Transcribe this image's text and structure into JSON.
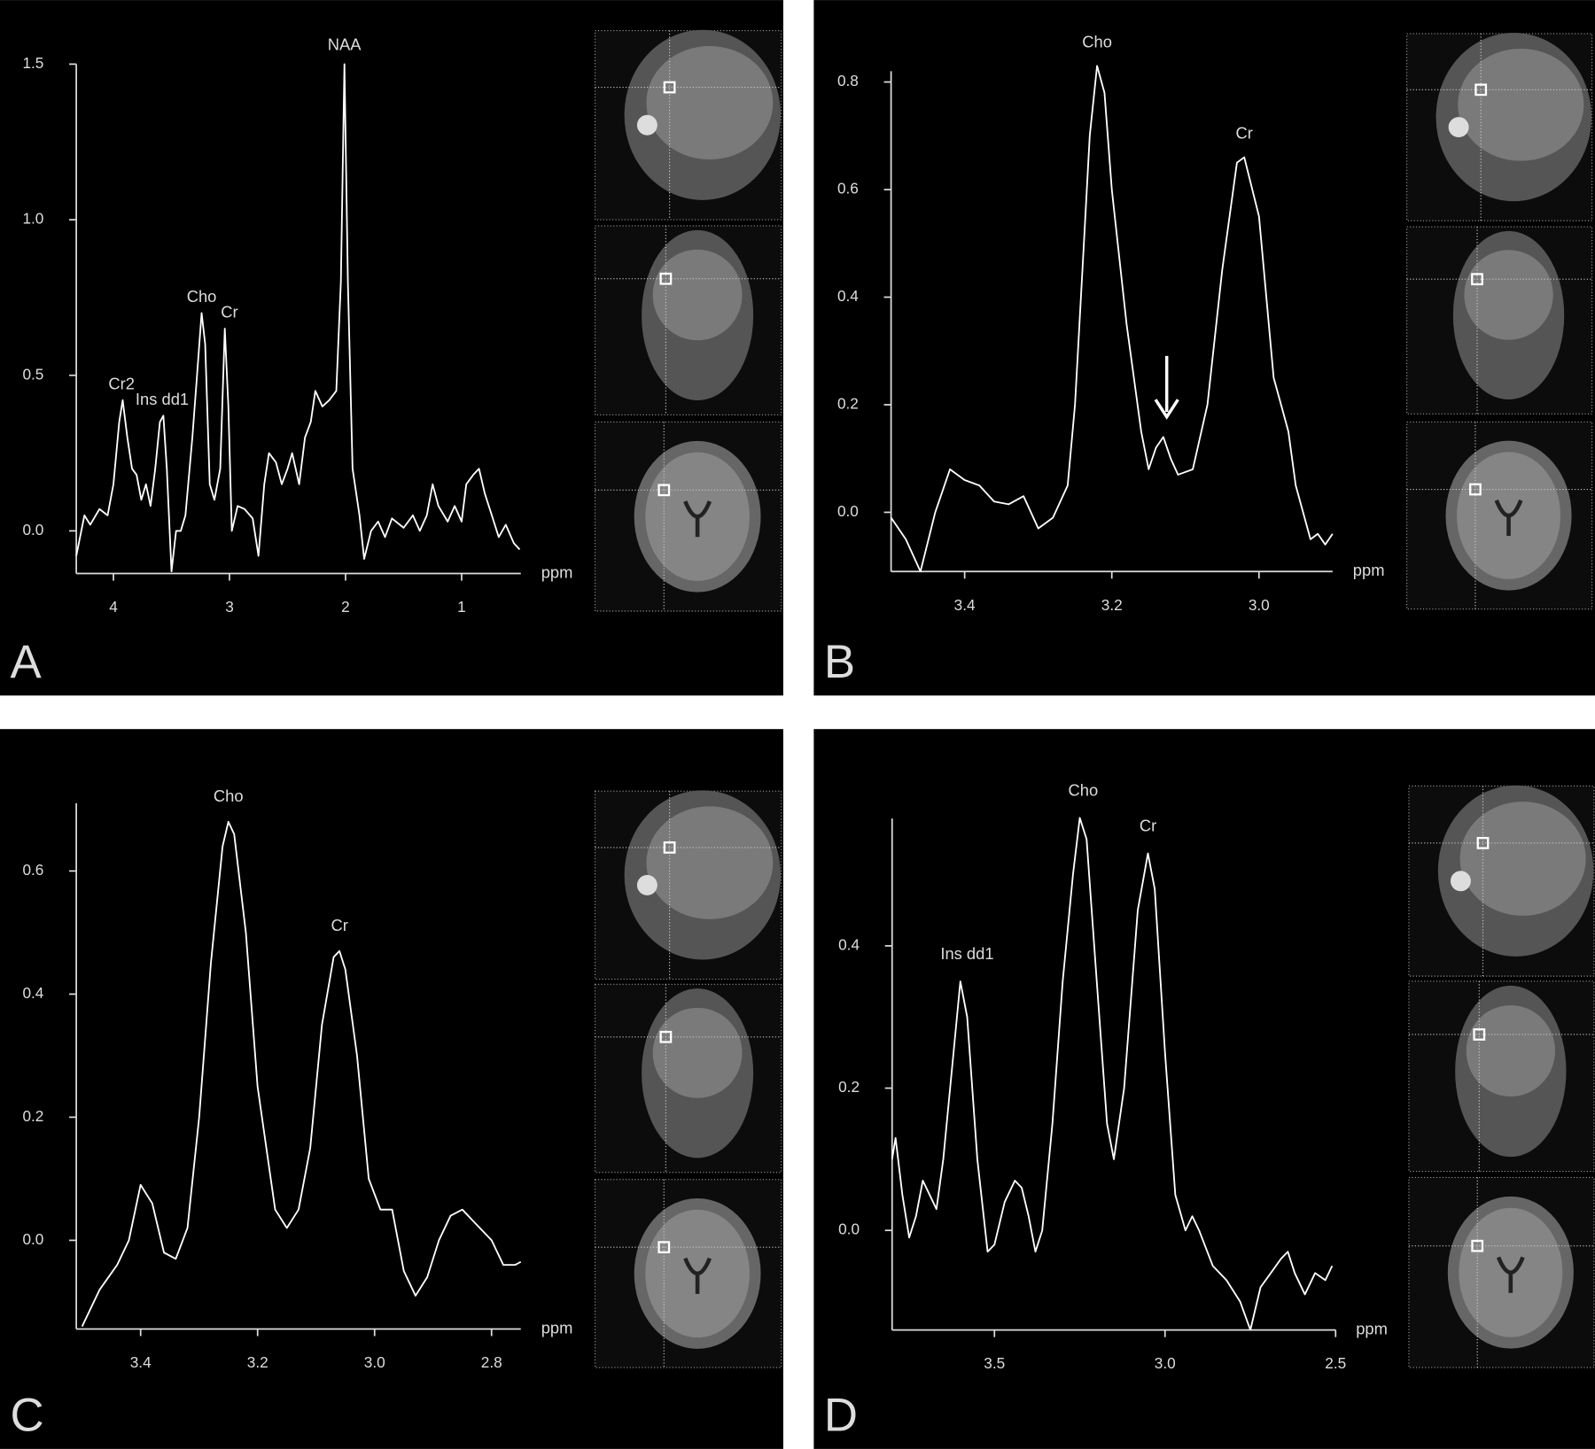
{
  "chart_data": [
    {
      "type": "line",
      "panel": "A",
      "xlabel": "ppm",
      "color": "#ffffff",
      "xlim": [
        4.32,
        0.49
      ],
      "ylim": [
        -0.137,
        1.5
      ],
      "xticks": [
        4,
        3,
        2,
        1
      ],
      "yticks": [
        {
          "value": 0,
          "label": "0.0"
        },
        0.5,
        {
          "value": 1,
          "label": "1.0"
        },
        1.5
      ],
      "x": [
        4.32,
        4.25,
        4.2,
        4.12,
        4.05,
        4.0,
        3.95,
        3.92,
        3.88,
        3.84,
        3.8,
        3.76,
        3.72,
        3.68,
        3.64,
        3.6,
        3.57,
        3.54,
        3.5,
        3.46,
        3.42,
        3.38,
        3.32,
        3.28,
        3.24,
        3.21,
        3.17,
        3.13,
        3.08,
        3.04,
        3.01,
        2.98,
        2.93,
        2.87,
        2.8,
        2.75,
        2.7,
        2.66,
        2.6,
        2.55,
        2.5,
        2.46,
        2.4,
        2.35,
        2.3,
        2.26,
        2.2,
        2.14,
        2.08,
        2.04,
        2.01,
        1.98,
        1.94,
        1.88,
        1.84,
        1.78,
        1.72,
        1.66,
        1.6,
        1.5,
        1.42,
        1.36,
        1.3,
        1.25,
        1.2,
        1.12,
        1.06,
        1.0,
        0.96,
        0.9,
        0.85,
        0.8,
        0.74,
        0.68,
        0.62,
        0.55,
        0.5
      ],
      "values": [
        -0.08,
        0.05,
        0.02,
        0.07,
        0.05,
        0.15,
        0.35,
        0.42,
        0.3,
        0.2,
        0.18,
        0.1,
        0.15,
        0.08,
        0.2,
        0.35,
        0.37,
        0.2,
        -0.13,
        0.0,
        0.0,
        0.05,
        0.3,
        0.5,
        0.7,
        0.6,
        0.15,
        0.1,
        0.2,
        0.65,
        0.4,
        0.0,
        0.08,
        0.07,
        0.04,
        -0.08,
        0.15,
        0.25,
        0.22,
        0.15,
        0.2,
        0.25,
        0.15,
        0.3,
        0.35,
        0.45,
        0.4,
        0.42,
        0.45,
        0.8,
        1.5,
        0.8,
        0.2,
        0.05,
        -0.09,
        0.0,
        0.03,
        -0.02,
        0.04,
        0.01,
        0.05,
        0.0,
        0.05,
        0.15,
        0.08,
        0.03,
        0.08,
        0.03,
        0.15,
        0.18,
        0.2,
        0.12,
        0.05,
        -0.02,
        0.02,
        -0.04,
        -0.06
      ],
      "annotations": [
        {
          "text": "Cr2",
          "x": 3.93,
          "y": 0.43
        },
        {
          "text": "Ins dd1",
          "x": 3.58,
          "y": 0.38
        },
        {
          "text": "Cho",
          "x": 3.24,
          "y": 0.71
        },
        {
          "text": "Cr",
          "x": 3.0,
          "y": 0.66
        },
        {
          "text": "NAA",
          "x": 2.01,
          "y": 1.52
        }
      ]
    },
    {
      "type": "line",
      "panel": "B",
      "xlabel": "ppm",
      "color": "#ffffff",
      "xlim": [
        3.5,
        2.9
      ],
      "ylim": [
        -0.11,
        0.82
      ],
      "xticks": [
        3.4,
        3.2,
        {
          "value": 3,
          "label": "3.0"
        }
      ],
      "yticks": [
        {
          "value": 0,
          "label": "0.0"
        },
        0.2,
        0.4,
        0.6,
        0.8
      ],
      "x": [
        3.5,
        3.48,
        3.46,
        3.44,
        3.42,
        3.4,
        3.38,
        3.36,
        3.34,
        3.32,
        3.3,
        3.28,
        3.26,
        3.25,
        3.24,
        3.23,
        3.22,
        3.21,
        3.2,
        3.18,
        3.16,
        3.15,
        3.14,
        3.13,
        3.12,
        3.11,
        3.09,
        3.07,
        3.05,
        3.03,
        3.02,
        3.0,
        2.98,
        2.97,
        2.96,
        2.95,
        2.93,
        2.92,
        2.91,
        2.9
      ],
      "values": [
        -0.01,
        -0.05,
        -0.11,
        0.0,
        0.08,
        0.06,
        0.05,
        0.02,
        0.015,
        0.03,
        -0.03,
        -0.01,
        0.05,
        0.2,
        0.45,
        0.7,
        0.83,
        0.78,
        0.6,
        0.35,
        0.15,
        0.08,
        0.12,
        0.14,
        0.1,
        0.07,
        0.08,
        0.2,
        0.45,
        0.65,
        0.66,
        0.55,
        0.25,
        0.2,
        0.15,
        0.05,
        -0.05,
        -0.04,
        -0.06,
        -0.04
      ],
      "annotations": [
        {
          "text": "Cho",
          "x": 3.22,
          "y": 0.85
        },
        {
          "text": "Cr",
          "x": 3.02,
          "y": 0.68
        }
      ]
    },
    {
      "type": "line",
      "panel": "C",
      "xlabel": "ppm",
      "color": "#ffffff",
      "xlim": [
        3.51,
        2.75
      ],
      "ylim": [
        -0.144,
        0.71
      ],
      "xticks": [
        3.4,
        3.2,
        {
          "value": 3,
          "label": "3.0"
        },
        2.8
      ],
      "yticks": [
        {
          "value": 0,
          "label": "0.0"
        },
        0.2,
        0.4,
        0.6
      ],
      "x": [
        3.5,
        3.47,
        3.44,
        3.42,
        3.4,
        3.38,
        3.36,
        3.34,
        3.32,
        3.3,
        3.28,
        3.26,
        3.25,
        3.24,
        3.22,
        3.2,
        3.17,
        3.15,
        3.13,
        3.11,
        3.09,
        3.07,
        3.06,
        3.05,
        3.03,
        3.01,
        2.99,
        2.97,
        2.95,
        2.93,
        2.91,
        2.89,
        2.87,
        2.85,
        2.83,
        2.8,
        2.78,
        2.76,
        2.75
      ],
      "values": [
        -0.14,
        -0.08,
        -0.04,
        0.0,
        0.09,
        0.06,
        -0.02,
        -0.03,
        0.02,
        0.2,
        0.45,
        0.64,
        0.68,
        0.66,
        0.5,
        0.25,
        0.05,
        0.02,
        0.05,
        0.15,
        0.35,
        0.46,
        0.47,
        0.44,
        0.3,
        0.1,
        0.05,
        0.05,
        -0.05,
        -0.09,
        -0.06,
        0.0,
        0.04,
        0.05,
        0.03,
        0.0,
        -0.04,
        -0.04,
        -0.035
      ],
      "annotations": [
        {
          "text": "Cho",
          "x": 3.25,
          "y": 0.7
        },
        {
          "text": "Cr",
          "x": 3.06,
          "y": 0.49
        }
      ]
    },
    {
      "type": "line",
      "panel": "D",
      "xlabel": "ppm",
      "color": "#ffffff",
      "xlim": [
        3.8,
        2.5
      ],
      "ylim": [
        -0.14,
        0.579
      ],
      "xticks": [
        3.5,
        {
          "value": 3,
          "label": "3.0"
        },
        2.5
      ],
      "yticks": [
        {
          "value": 0,
          "label": "0.0"
        },
        0.2,
        0.4
      ],
      "x": [
        3.8,
        3.79,
        3.77,
        3.75,
        3.73,
        3.71,
        3.69,
        3.67,
        3.65,
        3.62,
        3.6,
        3.58,
        3.55,
        3.52,
        3.5,
        3.47,
        3.44,
        3.42,
        3.4,
        3.38,
        3.36,
        3.33,
        3.3,
        3.27,
        3.25,
        3.23,
        3.2,
        3.17,
        3.15,
        3.12,
        3.08,
        3.05,
        3.03,
        3.0,
        2.97,
        2.94,
        2.92,
        2.9,
        2.86,
        2.82,
        2.78,
        2.75,
        2.72,
        2.69,
        2.66,
        2.64,
        2.62,
        2.59,
        2.56,
        2.53,
        2.51
      ],
      "values": [
        0.1,
        0.13,
        0.05,
        -0.01,
        0.02,
        0.07,
        0.05,
        0.03,
        0.1,
        0.25,
        0.35,
        0.3,
        0.1,
        -0.03,
        -0.02,
        0.04,
        0.07,
        0.06,
        0.02,
        -0.03,
        0.0,
        0.15,
        0.35,
        0.5,
        0.58,
        0.55,
        0.35,
        0.15,
        0.1,
        0.2,
        0.45,
        0.53,
        0.48,
        0.25,
        0.05,
        0.0,
        0.02,
        0.0,
        -0.05,
        -0.07,
        -0.1,
        -0.14,
        -0.08,
        -0.06,
        -0.04,
        -0.03,
        -0.06,
        -0.09,
        -0.06,
        -0.07,
        -0.05
      ],
      "annotations": [
        {
          "text": "Ins dd1",
          "x": 3.58,
          "y": 0.37
        },
        {
          "text": "Cho",
          "x": 3.24,
          "y": 0.6
        },
        {
          "text": "Cr",
          "x": 3.05,
          "y": 0.55
        }
      ]
    }
  ]
}
